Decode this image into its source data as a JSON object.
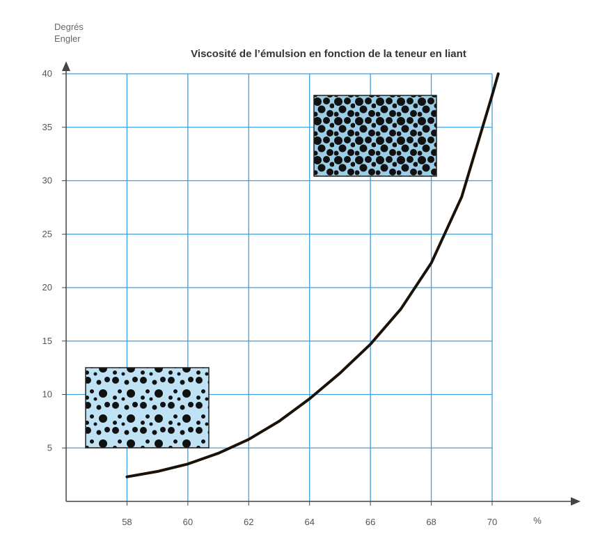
{
  "chart_data": {
    "type": "line",
    "title": "Viscosité de l’émulsion en fonction de la teneur en liant",
    "y_label": "Degrés Engler",
    "x_label": "%",
    "x": [
      58,
      59,
      60,
      61,
      62,
      63,
      64,
      65,
      66,
      67,
      68,
      69,
      70,
      70.2
    ],
    "series": [
      {
        "color": "#1a1208",
        "values": [
          2.3,
          2.8,
          3.5,
          4.5,
          5.8,
          7.5,
          9.6,
          12,
          14.7,
          18,
          22.3,
          28.5,
          38,
          40
        ]
      }
    ],
    "xlim": [
      56,
      70
    ],
    "xticks": [
      58,
      60,
      62,
      64,
      66,
      68,
      70
    ],
    "ylim": [
      0,
      40
    ],
    "yticks": [
      5,
      10,
      15,
      20,
      25,
      30,
      35,
      40
    ],
    "grid": true,
    "grid_color": "#3d9fe0"
  }
}
